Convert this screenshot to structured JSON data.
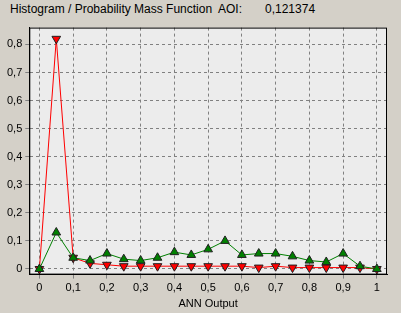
{
  "chart_data": {
    "type": "line",
    "title": "Histogram / Probability Mass Function",
    "annotations": [
      "AOI:",
      "0,121374"
    ],
    "x_label": "ANN Output",
    "x": [
      0,
      0.05,
      0.1,
      0.15,
      0.2,
      0.25,
      0.3,
      0.35,
      0.4,
      0.45,
      0.5,
      0.55,
      0.6,
      0.65,
      0.7,
      0.75,
      0.8,
      0.85,
      0.9,
      0.95,
      1
    ],
    "series": [
      {
        "color": "#ff0000",
        "marker": "triangle_down",
        "values": [
          0,
          0.82,
          0.04,
          0.02,
          0.015,
          0.01,
          0.01,
          0.01,
          0.01,
          0.01,
          0.01,
          0.01,
          0.01,
          0.005,
          0.01,
          0.005,
          0.005,
          0.005,
          0.005,
          0.005,
          0
        ]
      },
      {
        "color": "#008000",
        "marker": "triangle_up",
        "values": [
          0,
          0.13,
          0.04,
          0.03,
          0.055,
          0.035,
          0.03,
          0.04,
          0.06,
          0.05,
          0.07,
          0.1,
          0.05,
          0.055,
          0.055,
          0.045,
          0.03,
          0.025,
          0.055,
          0.01,
          0
        ]
      }
    ],
    "xlim": [
      -0.03,
      1.03
    ],
    "xticks": [
      0,
      {
        "value": 0.1,
        "label": "0,1"
      },
      {
        "value": 0.2,
        "label": "0,2"
      },
      {
        "value": 0.3,
        "label": "0,3"
      },
      {
        "value": 0.4,
        "label": "0,4"
      },
      {
        "value": 0.5,
        "label": "0,5"
      },
      {
        "value": 0.6,
        "label": "0,6"
      },
      {
        "value": 0.7,
        "label": "0,7"
      },
      {
        "value": 0.8,
        "label": "0,8"
      },
      {
        "value": 0.9,
        "label": "0,9"
      },
      1
    ],
    "ylim": [
      -0.02,
      0.86
    ],
    "yticks": [
      0,
      {
        "value": 0.1,
        "label": "0,1"
      },
      {
        "value": 0.2,
        "label": "0,2"
      },
      {
        "value": 0.3,
        "label": "0,3"
      },
      {
        "value": 0.4,
        "label": "0,4"
      },
      {
        "value": 0.5,
        "label": "0,5"
      },
      {
        "value": 0.6,
        "label": "0,6"
      },
      {
        "value": 0.7,
        "label": "0,7"
      },
      {
        "value": 0.8,
        "label": "0,8"
      }
    ],
    "grid": true
  }
}
